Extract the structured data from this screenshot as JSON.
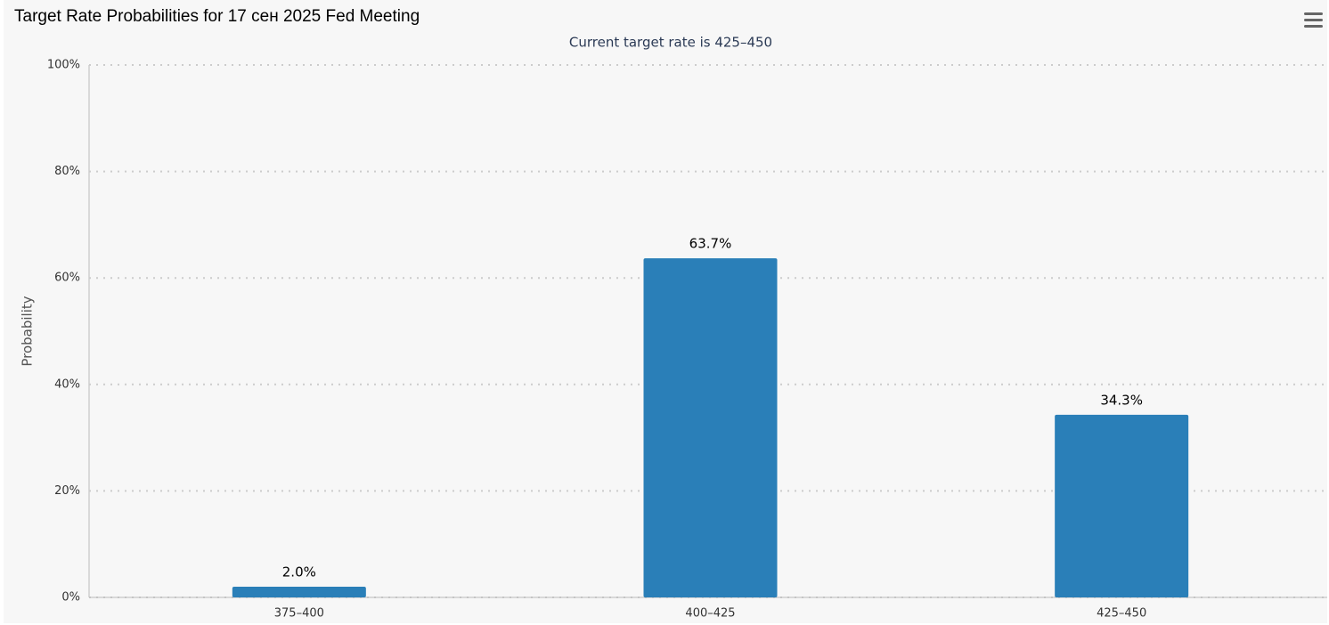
{
  "chart_data": {
    "type": "bar",
    "title": "Target Rate Probabilities for 17 сен 2025 Fed Meeting",
    "subtitle": "Current target rate is 425–450",
    "y_label": "Probability",
    "categories": [
      "375–400",
      "400–425",
      "425–450"
    ],
    "values": [
      2.0,
      63.7,
      34.3
    ],
    "value_labels": [
      "2.0%",
      "63.7%",
      "34.3%"
    ],
    "color": "#2a7fb8",
    "ylim": [
      0,
      100
    ],
    "yticks": [
      {
        "value": 0,
        "label": "0%"
      },
      {
        "value": 20,
        "label": "20%"
      },
      {
        "value": 40,
        "label": "40%"
      },
      {
        "value": 60,
        "label": "60%"
      },
      {
        "value": 80,
        "label": "80%"
      },
      {
        "value": 100,
        "label": "100%"
      }
    ],
    "grid": true
  }
}
